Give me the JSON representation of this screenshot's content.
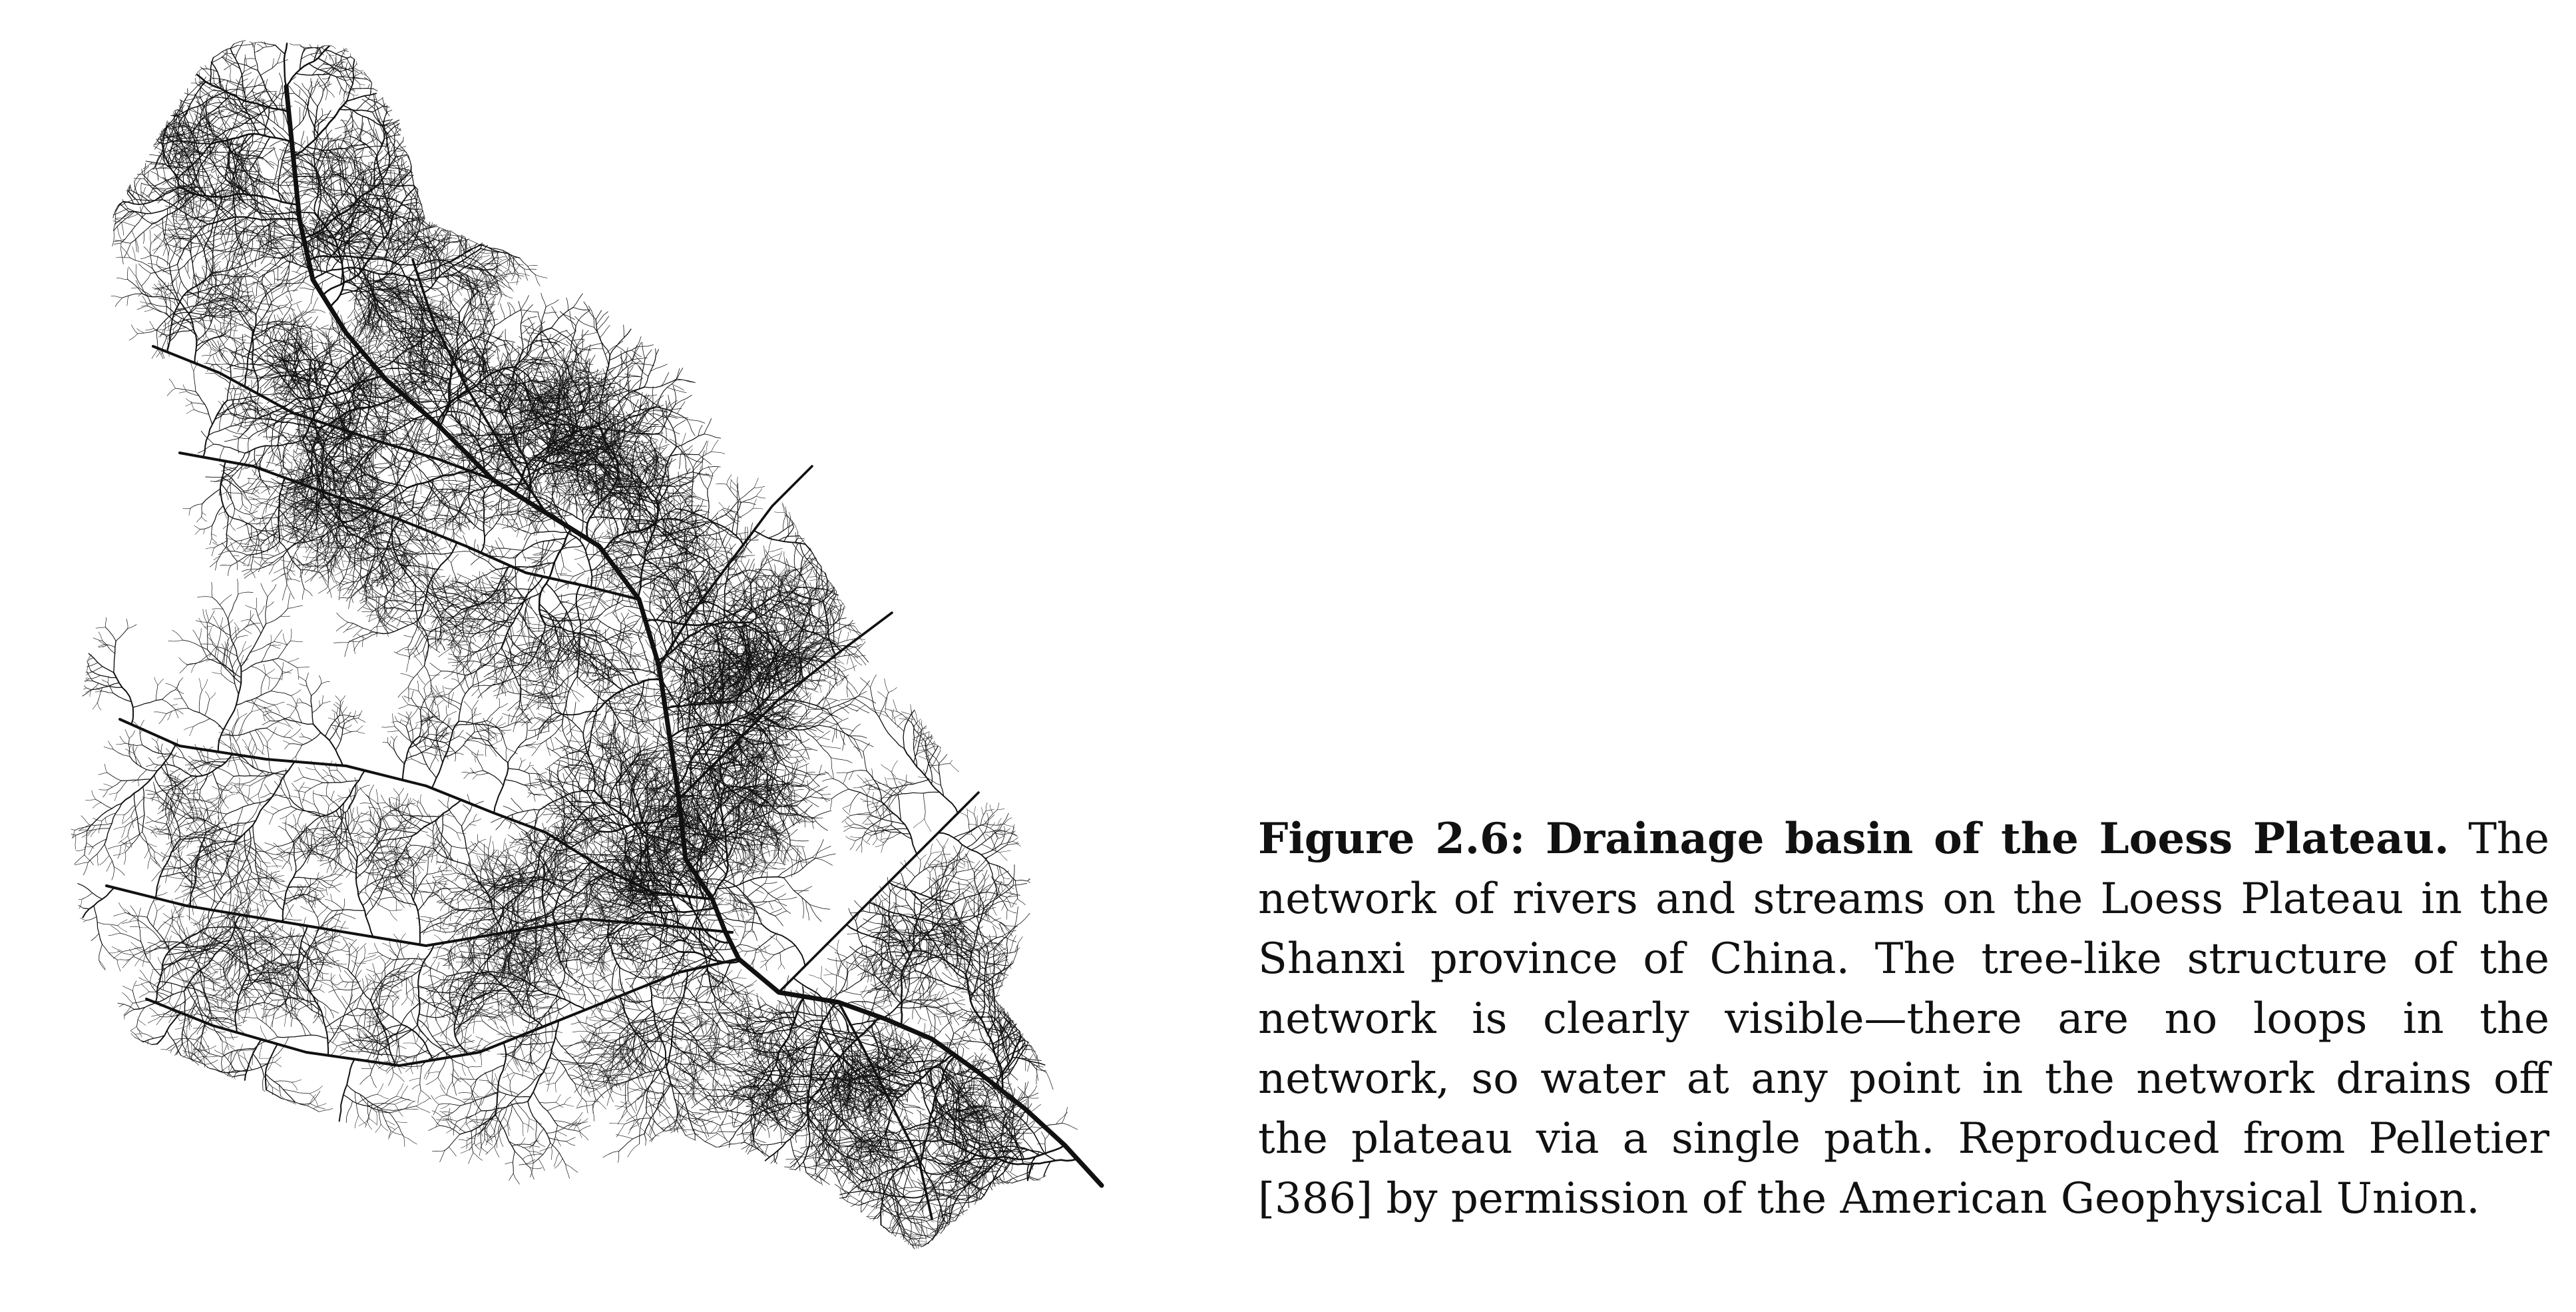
{
  "figure": {
    "caption_label": "Figure 2.6: Drainage basin of the Loess Plateau.",
    "caption_text": "The network of rivers and streams on the Loess Plateau in the Shanxi province of China. The tree-like structure of the network is clearly visible—there are no loops in the network, so water at any point in the network drains off the plateau via a single path. Reproduced from Pelletier [386] by permission of the American Geophysical Union.",
    "image_description": "drainage-network-illustration"
  },
  "colors": {
    "ink": "#111111",
    "background": "#ffffff"
  }
}
